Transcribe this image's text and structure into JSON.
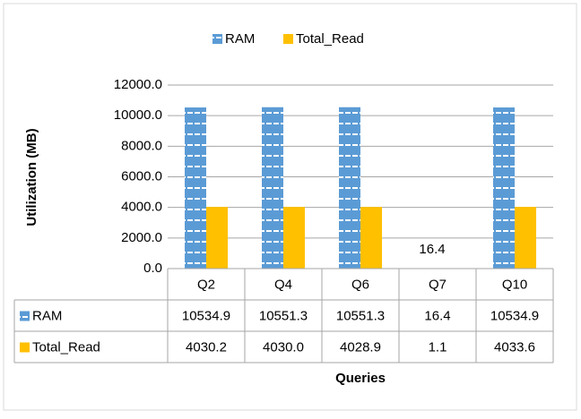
{
  "chart_data": {
    "type": "bar",
    "categories": [
      "Q2",
      "Q4",
      "Q6",
      "Q7",
      "Q10"
    ],
    "series": [
      {
        "name": "RAM",
        "color": "#5B9BD5",
        "values": [
          10534.9,
          10551.3,
          10551.3,
          16.4,
          10534.9
        ],
        "value_labels": [
          "10534.9",
          "10551.3",
          "10551.3",
          "16.4",
          "10534.9"
        ]
      },
      {
        "name": "Total_Read",
        "color": "#FFC000",
        "values": [
          4030.2,
          4030.0,
          4028.9,
          1.1,
          4033.6
        ],
        "value_labels": [
          "4030.2",
          "4030.0",
          "4028.9",
          "1.1",
          "4033.6"
        ]
      }
    ],
    "ylabel": "Utilization (MB)",
    "xlabel": "Queries",
    "ylim": [
      0,
      12000
    ],
    "yticks": [
      {
        "value": 0,
        "label": "0.0"
      },
      {
        "value": 2000,
        "label": "2000.0"
      },
      {
        "value": 4000,
        "label": "4000.0"
      },
      {
        "value": 6000,
        "label": "6000.0"
      },
      {
        "value": 8000,
        "label": "8000.0"
      },
      {
        "value": 10000,
        "label": "10000.0"
      },
      {
        "value": 12000,
        "label": "12000.0"
      }
    ],
    "grid": true,
    "legend": "top"
  }
}
